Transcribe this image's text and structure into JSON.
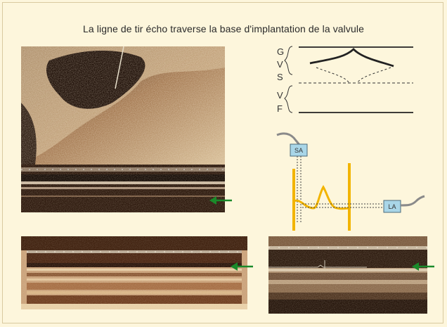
{
  "title": "La ligne de tir écho traverse la base d'implantation de la valvule",
  "diagram": {
    "layer_labels": [
      "G",
      "V",
      "S",
      "V",
      "F"
    ],
    "probe_labels": {
      "sa": "SA",
      "la": "LA"
    }
  },
  "colors": {
    "background": "#fdf6dc",
    "arrow": "#1a8a2a",
    "trace": "#f2b400",
    "probe_box": "#a9d6e8",
    "cable": "#8a8a8a"
  }
}
